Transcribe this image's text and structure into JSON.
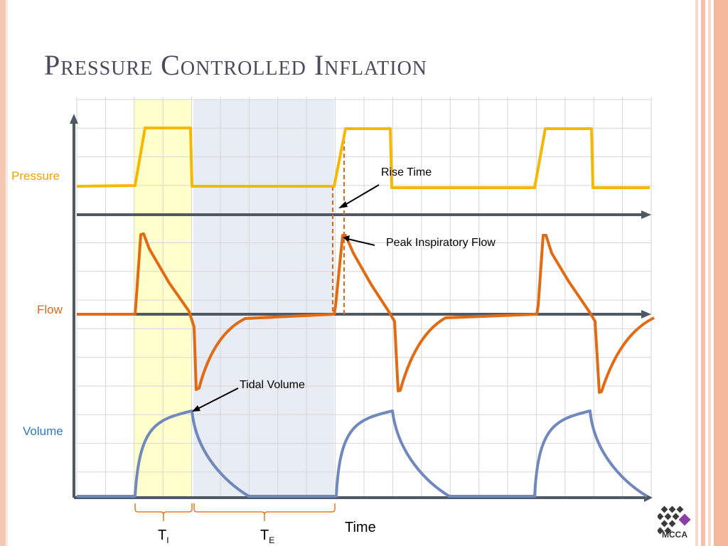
{
  "slide": {
    "title": "Pressure Controlled Inflation"
  },
  "labels": {
    "pressure": "Pressure",
    "flow": "Flow",
    "volume": "Volume",
    "time": "Time",
    "ti_main": "T",
    "ti_sub": "I",
    "te_main": "T",
    "te_sub": "E"
  },
  "annotations": {
    "rise_time": "Rise Time",
    "peak_inspiratory_flow": "Peak Inspiratory Flow",
    "tidal_volume": "Tidal Volume"
  },
  "logo": {
    "text": "MCCA"
  },
  "colors": {
    "pressure": "#f5b800",
    "flow": "#e26a12",
    "volume": "#7088bd",
    "axis": "#4f5966",
    "inspiration_band": "#ffffcc",
    "expiration_band": "#e8ecf4",
    "label_pressure": "#f4a300",
    "label_flow": "#e26a12",
    "label_volume": "#2e78c2",
    "bracket": "#e87722"
  }
}
